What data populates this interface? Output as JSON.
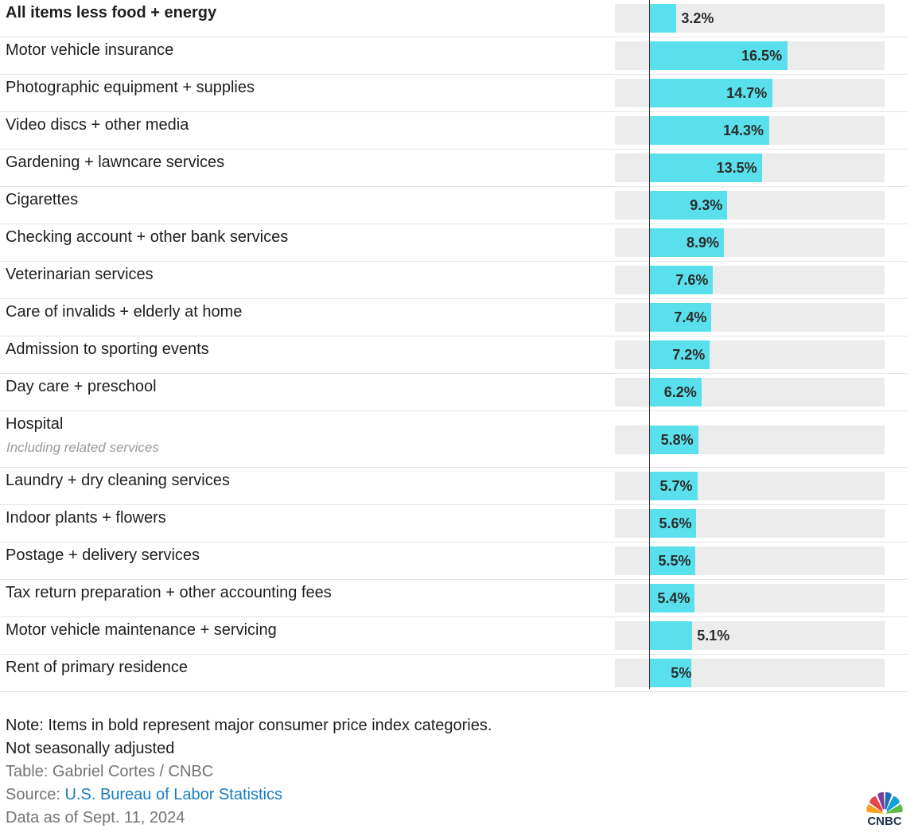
{
  "chart_data": {
    "type": "bar",
    "categories": [
      "All items less food + energy",
      "Motor vehicle insurance",
      "Photographic equipment + supplies",
      "Video discs + other media",
      "Gardening + lawncare services",
      "Cigarettes",
      "Checking account + other bank services",
      "Veterinarian services",
      "Care of invalids + elderly at home",
      "Admission to sporting events",
      "Day care + preschool",
      "Hospital",
      "Laundry + dry cleaning services",
      "Indoor plants + flowers",
      "Postage + delivery services",
      "Tax return preparation + other accounting fees",
      "Motor vehicle maintenance + servicing",
      "Rent of primary residence"
    ],
    "sublabels": [
      "",
      "",
      "",
      "",
      "",
      "",
      "",
      "",
      "",
      "",
      "",
      "Including related services",
      "",
      "",
      "",
      "",
      "",
      ""
    ],
    "bold": [
      true,
      false,
      false,
      false,
      false,
      false,
      false,
      false,
      false,
      false,
      false,
      false,
      false,
      false,
      false,
      false,
      false,
      false
    ],
    "values": [
      3.2,
      16.5,
      14.7,
      14.3,
      13.5,
      9.3,
      8.9,
      7.6,
      7.4,
      7.2,
      6.2,
      5.8,
      5.7,
      5.6,
      5.5,
      5.4,
      5.1,
      5.0
    ],
    "value_labels": [
      "3.2%",
      "16.5%",
      "14.7%",
      "14.3%",
      "13.5%",
      "9.3%",
      "8.9%",
      "7.6%",
      "7.4%",
      "7.2%",
      "6.2%",
      "5.8%",
      "5.7%",
      "5.6%",
      "5.5%",
      "5.4%",
      "5.1%",
      "5%"
    ],
    "xlim": [
      -4.1,
      28.3
    ],
    "grid": false,
    "colors": {
      "bar": "#5ae0ec",
      "track": "#ececec",
      "axis": "#333333",
      "row_divider": "#e4e4e4"
    }
  },
  "footer": {
    "note_line1": "Note: Items in bold represent major consumer price index categories.",
    "note_line2": "Not seasonally adjusted",
    "table_credit": "Table: Gabriel Cortes / CNBC",
    "source_prefix": "Source: ",
    "source_link": "U.S. Bureau of Labor Statistics",
    "data_date": "Data as of Sept. 11, 2024",
    "link_color": "#1a7dc2"
  },
  "logo": {
    "text": "CNBC",
    "icon": "cnbc-peacock-icon"
  }
}
